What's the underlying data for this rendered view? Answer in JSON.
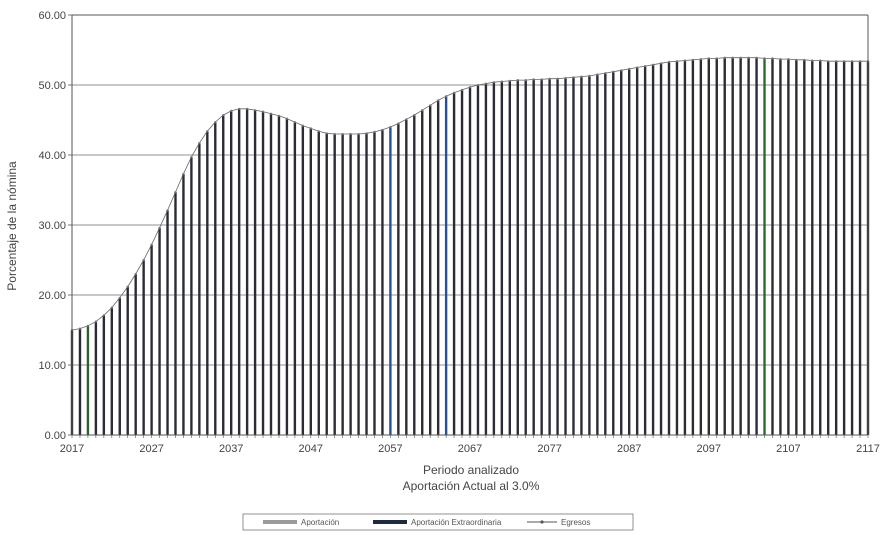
{
  "chart_data": {
    "type": "bar",
    "title": "",
    "xlabel": "Periodo analizado",
    "subtitle": "Aportación Actual al 3.0%",
    "ylabel": "Porcentaje de la nómina",
    "ylim": [
      0,
      60
    ],
    "y_ticks": [
      "0.00",
      "10.00",
      "20.00",
      "30.00",
      "40.00",
      "50.00",
      "60.00"
    ],
    "x_ticks": [
      "2017",
      "2027",
      "2037",
      "2047",
      "2057",
      "2067",
      "2077",
      "2087",
      "2097",
      "2107",
      "2117"
    ],
    "grid": true,
    "legend_position": "bottom",
    "legend": [
      {
        "label": "Aportación",
        "symbol": "bar",
        "color": "#9a9a9a"
      },
      {
        "label": "Aportación Extraordinaria",
        "symbol": "bar",
        "color": "#1f2a3a"
      },
      {
        "label": "Egresos",
        "symbol": "line-marker",
        "color": "#555555"
      }
    ],
    "x": [
      2017,
      2018,
      2019,
      2020,
      2021,
      2022,
      2023,
      2024,
      2025,
      2026,
      2027,
      2028,
      2029,
      2030,
      2031,
      2032,
      2033,
      2034,
      2035,
      2036,
      2037,
      2038,
      2039,
      2040,
      2041,
      2042,
      2043,
      2044,
      2045,
      2046,
      2047,
      2048,
      2049,
      2050,
      2051,
      2052,
      2053,
      2054,
      2055,
      2056,
      2057,
      2058,
      2059,
      2060,
      2061,
      2062,
      2063,
      2064,
      2065,
      2066,
      2067,
      2068,
      2069,
      2070,
      2071,
      2072,
      2073,
      2074,
      2075,
      2076,
      2077,
      2078,
      2079,
      2080,
      2081,
      2082,
      2083,
      2084,
      2085,
      2086,
      2087,
      2088,
      2089,
      2090,
      2091,
      2092,
      2093,
      2094,
      2095,
      2096,
      2097,
      2098,
      2099,
      2100,
      2101,
      2102,
      2103,
      2104,
      2105,
      2106,
      2107,
      2108,
      2109,
      2110,
      2111,
      2112,
      2113,
      2114,
      2115,
      2116,
      2117
    ],
    "series": [
      {
        "name": "Egresos",
        "color": "#2b2b35",
        "values": [
          15.0,
          15.2,
          15.6,
          16.2,
          17.1,
          18.2,
          19.6,
          21.2,
          23.0,
          25.0,
          27.2,
          29.6,
          32.1,
          34.7,
          37.3,
          39.7,
          41.7,
          43.4,
          44.7,
          45.7,
          46.3,
          46.6,
          46.6,
          46.4,
          46.2,
          45.9,
          45.6,
          45.2,
          44.7,
          44.2,
          43.8,
          43.4,
          43.1,
          43.0,
          43.0,
          43.0,
          43.0,
          43.1,
          43.3,
          43.6,
          44.0,
          44.5,
          45.1,
          45.7,
          46.4,
          47.1,
          47.8,
          48.4,
          48.9,
          49.3,
          49.7,
          50.0,
          50.2,
          50.4,
          50.5,
          50.6,
          50.7,
          50.7,
          50.8,
          50.8,
          50.9,
          50.9,
          51.0,
          51.1,
          51.2,
          51.3,
          51.5,
          51.7,
          51.9,
          52.1,
          52.3,
          52.5,
          52.7,
          52.9,
          53.1,
          53.3,
          53.4,
          53.5,
          53.6,
          53.7,
          53.8,
          53.8,
          53.9,
          53.9,
          53.9,
          53.9,
          53.9,
          53.8,
          53.8,
          53.7,
          53.7,
          53.6,
          53.6,
          53.5,
          53.5,
          53.4,
          53.4,
          53.4,
          53.4,
          53.4,
          53.4
        ]
      }
    ],
    "highlight_bars": [
      {
        "year": 2019,
        "color": "#2e5e2e"
      },
      {
        "year": 2057,
        "color": "#2a4f9a"
      },
      {
        "year": 2064,
        "color": "#2a4f9a"
      },
      {
        "year": 2104,
        "color": "#2e6a2e"
      }
    ]
  }
}
